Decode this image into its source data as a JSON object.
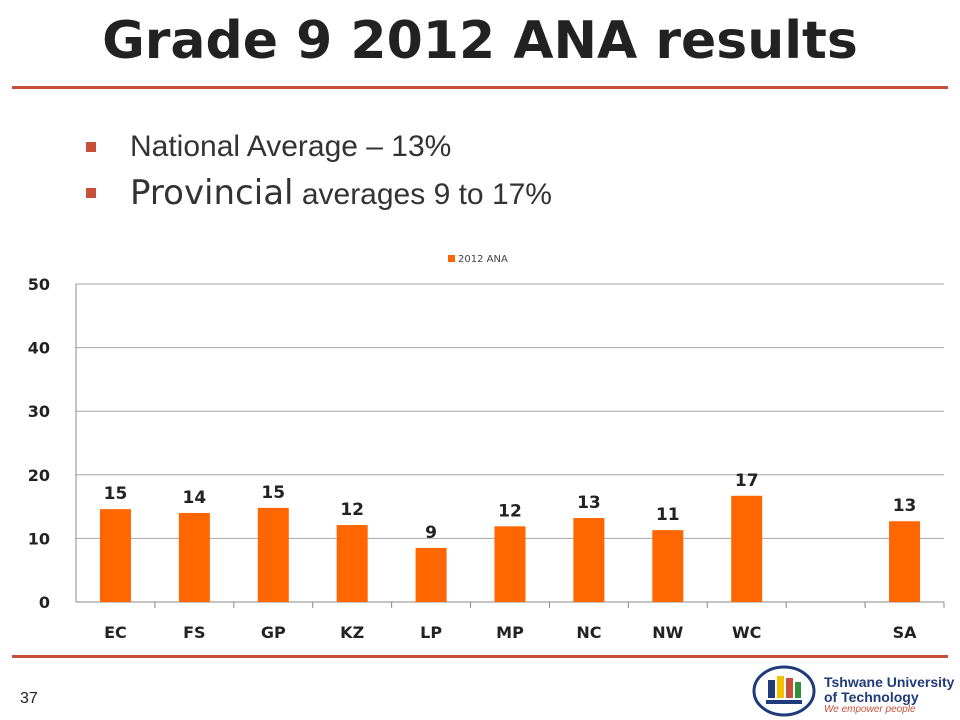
{
  "slide": {
    "title": "Grade 9 2012 ANA results",
    "bullets": [
      {
        "lead": "National Average",
        "rest": " – 13%"
      },
      {
        "lead": "Provincial",
        "rest": " averages 9 to 17%"
      }
    ],
    "slide_number": "37",
    "logo": {
      "line1": "Tshwane University",
      "line2": "of Technology",
      "tagline": "We empower people"
    },
    "colors": {
      "accent": "#c8503a",
      "bar": "#ff6600"
    }
  },
  "chart_data": {
    "type": "bar",
    "categories": [
      "EC",
      "FS",
      "GP",
      "KZ",
      "LP",
      "MP",
      "NC",
      "NW",
      "WC",
      "",
      "SA"
    ],
    "series": [
      {
        "name": "2012 ANA",
        "values": [
          14.6,
          14.0,
          14.8,
          12.1,
          8.5,
          11.9,
          13.2,
          11.3,
          16.7,
          null,
          12.7
        ],
        "labels": [
          "15",
          "14",
          "15",
          "12",
          "9",
          "12",
          "13",
          "11",
          "17",
          "",
          "13"
        ]
      }
    ],
    "title": "",
    "xlabel": "",
    "ylabel": "",
    "ylim": [
      0,
      50
    ],
    "yticks": [
      "0",
      "10",
      "20",
      "30",
      "40",
      "50"
    ],
    "grid": true,
    "legend_position": "top"
  }
}
